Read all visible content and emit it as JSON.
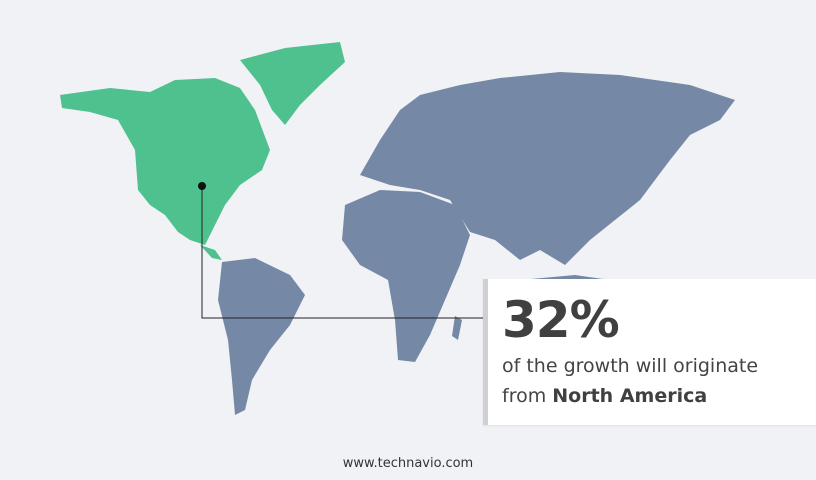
{
  "highlight": {
    "percentage": "32%",
    "text": "of the growth will originate",
    "prefix": "from",
    "region": "North America"
  },
  "footer": {
    "website": "www.technavio.com"
  },
  "colors": {
    "highlighted_region": "#4fc18f",
    "other_regions": "#7589a6",
    "background": "#f1f2f5"
  }
}
